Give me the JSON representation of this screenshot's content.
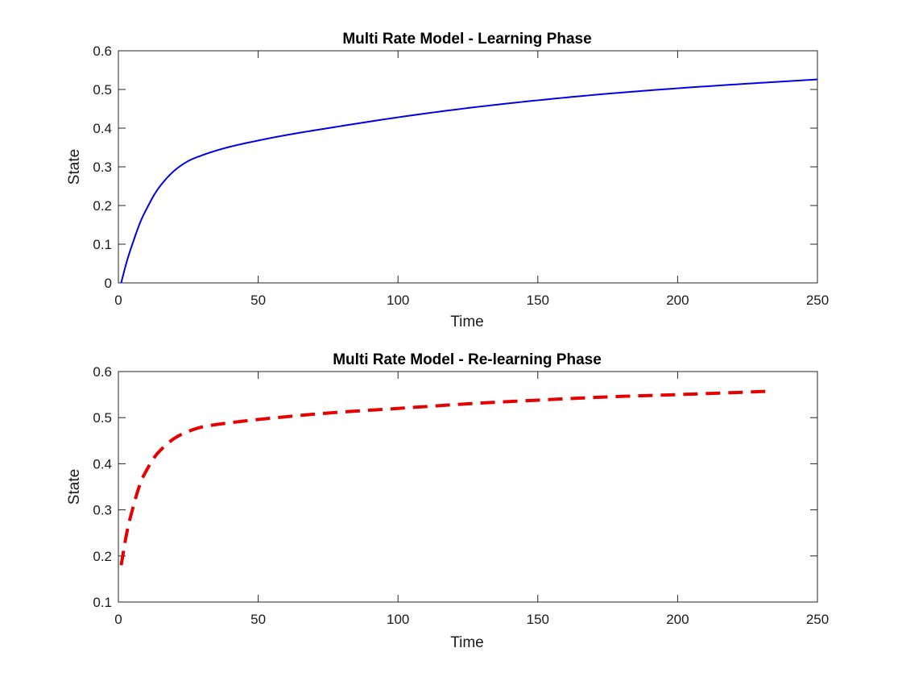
{
  "chart_data": [
    {
      "type": "line",
      "title": "Multi Rate Model - Learning Phase",
      "xlabel": "Time",
      "ylabel": "State",
      "xlim": [
        0,
        250
      ],
      "ylim": [
        0,
        0.6
      ],
      "xticks": [
        "0",
        "50",
        "100",
        "150",
        "200",
        "250"
      ],
      "yticks": [
        "0",
        "0.1",
        "0.2",
        "0.3",
        "0.4",
        "0.5",
        "0.6"
      ],
      "grid": false,
      "series": [
        {
          "color": "#0000e6",
          "style": "solid",
          "x": [
            1,
            3,
            5,
            8,
            10,
            13,
            16,
            20,
            25,
            30,
            35,
            40,
            50,
            60,
            75,
            100,
            125,
            150,
            175,
            200,
            225,
            250
          ],
          "y": [
            0.0,
            0.055,
            0.1,
            0.16,
            0.19,
            0.23,
            0.26,
            0.29,
            0.315,
            0.33,
            0.342,
            0.352,
            0.368,
            0.382,
            0.4,
            0.428,
            0.452,
            0.472,
            0.489,
            0.503,
            0.515,
            0.526
          ]
        }
      ]
    },
    {
      "type": "line",
      "title": "Multi Rate Model - Re-learning Phase",
      "xlabel": "Time",
      "ylabel": "State",
      "xlim": [
        0,
        250
      ],
      "ylim": [
        0.1,
        0.6
      ],
      "xticks": [
        "0",
        "50",
        "100",
        "150",
        "200",
        "250"
      ],
      "yticks": [
        "0.1",
        "0.2",
        "0.3",
        "0.4",
        "0.5",
        "0.6"
      ],
      "grid": false,
      "series": [
        {
          "color": "#e60000",
          "style": "dashed",
          "x": [
            1,
            3,
            5,
            8,
            10,
            13,
            16,
            20,
            25,
            30,
            35,
            40,
            50,
            60,
            75,
            100,
            125,
            150,
            175,
            200,
            232
          ],
          "y": [
            0.18,
            0.25,
            0.3,
            0.36,
            0.385,
            0.415,
            0.435,
            0.455,
            0.47,
            0.48,
            0.485,
            0.489,
            0.496,
            0.502,
            0.51,
            0.52,
            0.53,
            0.538,
            0.545,
            0.55,
            0.557
          ]
        }
      ]
    }
  ]
}
